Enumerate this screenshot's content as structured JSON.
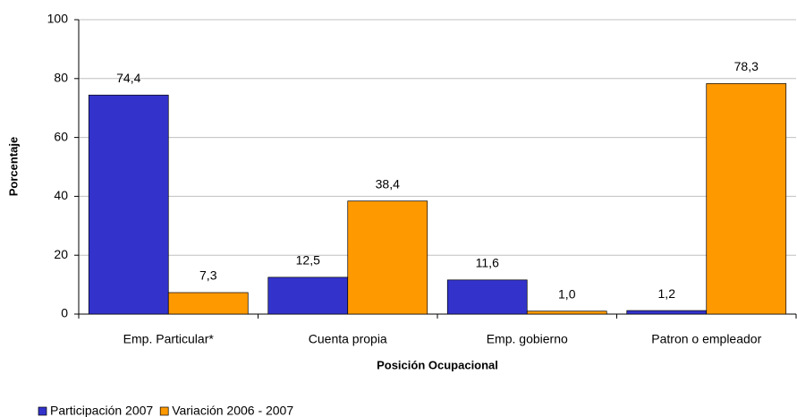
{
  "chart_data": {
    "type": "bar",
    "y_label": "Porcentaje",
    "x_label": "Posición Ocupacional",
    "categories": [
      "Emp. Particular*",
      "Cuenta propia",
      "Emp. gobierno",
      "Patron o empleador"
    ],
    "series": [
      {
        "name": "Participación 2007",
        "color": "#3333cc",
        "values": [
          74.4,
          12.5,
          11.6,
          1.2
        ],
        "value_labels": [
          "74,4",
          "12,5",
          "11,6",
          "1,2"
        ]
      },
      {
        "name": "Variación 2006 - 2007",
        "color": "#ff9900",
        "values": [
          7.3,
          38.4,
          1.0,
          78.3
        ],
        "value_labels": [
          "7,3",
          "38,4",
          "1,0",
          "78,3"
        ]
      }
    ],
    "ylim": [
      0,
      100
    ],
    "yticks": [
      0,
      20,
      40,
      60,
      80,
      100
    ],
    "grid": true
  }
}
